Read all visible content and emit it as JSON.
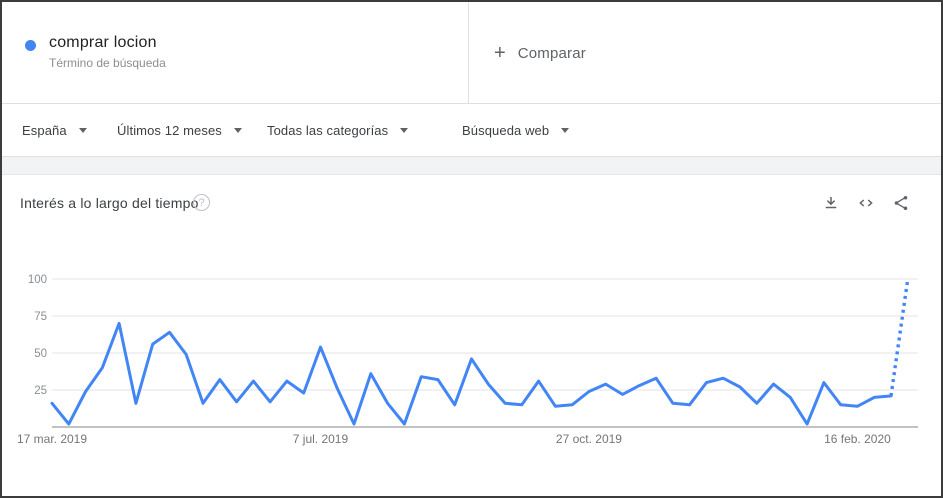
{
  "header": {
    "term": "comprar locion",
    "term_type": "Término de búsqueda",
    "dot_color": "#4285f4",
    "compare": {
      "plus_icon": "+",
      "label": "Comparar"
    }
  },
  "filters": {
    "items": [
      {
        "name": "filter-region",
        "label": "España"
      },
      {
        "name": "filter-time-range",
        "label": "Últimos 12 meses"
      },
      {
        "name": "filter-category",
        "label": "Todas las categorías"
      },
      {
        "name": "filter-search-type",
        "label": "Búsqueda web"
      }
    ]
  },
  "chart_section": {
    "title": "Interés a lo largo del tiempo",
    "help_icon": "?",
    "toolbar": [
      {
        "name": "download-icon"
      },
      {
        "name": "embed-icon"
      },
      {
        "name": "share-icon"
      }
    ]
  },
  "chart_data": {
    "type": "line",
    "title": "Interés a lo largo del tiempo",
    "xlabel": "",
    "ylabel": "",
    "x_unit": "week",
    "x_range": [
      "17 mar. 2019",
      "8 mar. 2020"
    ],
    "x_tick_labels": [
      {
        "index": 0,
        "label": "17 mar. 2019"
      },
      {
        "index": 16,
        "label": "7 jul. 2019"
      },
      {
        "index": 32,
        "label": "27 oct. 2019"
      },
      {
        "index": 48,
        "label": "16 feb. 2020"
      }
    ],
    "y_ticks": [
      25,
      50,
      75,
      100
    ],
    "ylim": [
      0,
      100
    ],
    "grid": true,
    "legend_position": "none",
    "line_color": "#4285f4",
    "grid_color": "#e3e3e3",
    "axis_line_color": "#9e9e9e",
    "tick_label_color": "#8a8f94",
    "date_label_color": "#757575",
    "dotted_tail_points": 2,
    "series": [
      {
        "name": "comprar locion",
        "values": [
          16,
          2,
          24,
          40,
          70,
          16,
          56,
          64,
          49,
          16,
          32,
          17,
          31,
          17,
          31,
          23,
          54,
          26,
          2,
          36,
          16,
          2,
          34,
          32,
          15,
          46,
          29,
          16,
          15,
          31,
          14,
          15,
          24,
          29,
          22,
          28,
          33,
          16,
          15,
          30,
          33,
          27,
          16,
          29,
          20,
          2,
          30,
          15,
          14,
          20,
          21,
          100
        ]
      }
    ]
  }
}
